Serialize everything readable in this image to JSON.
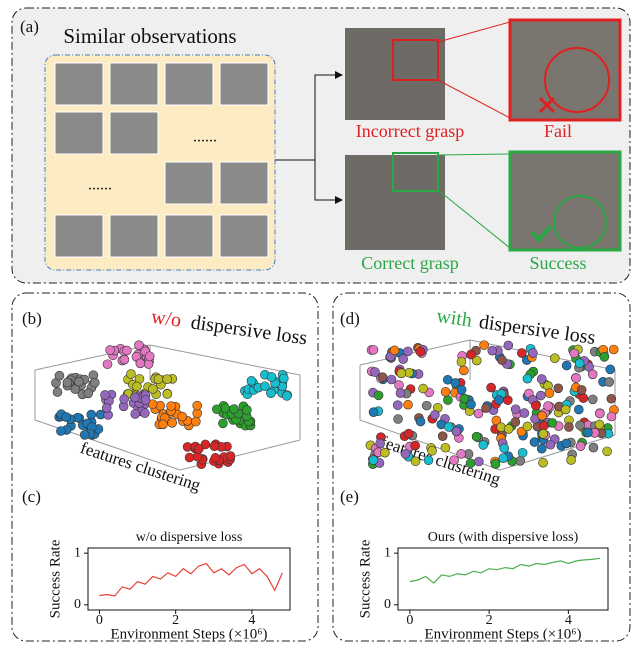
{
  "panel_a": {
    "label": "(a)",
    "title": "Similar observations",
    "dots": [
      "......",
      "......"
    ],
    "incorrect": "Incorrect grasp",
    "fail": "Fail",
    "correct": "Correct grasp",
    "success": "Success"
  },
  "panel_b": {
    "label": "(b)",
    "title_prefix": "w/o",
    "title_rest": "dispersive loss",
    "axis_label": "features clustering"
  },
  "panel_d": {
    "label": "(d)",
    "title_prefix": "with",
    "title_rest": "dispersive loss",
    "axis_label": "features clustering"
  },
  "panel_c_label": "(c)",
  "panel_e_label": "(e)",
  "chart_data": [
    {
      "type": "line",
      "title": "w/o dispersive loss",
      "x_label": "Environment Steps (×10⁶)",
      "y_label": "Success Rate",
      "color": "#e8443a",
      "x": [
        0,
        0.2,
        0.4,
        0.6,
        0.8,
        1.0,
        1.2,
        1.4,
        1.6,
        1.8,
        2.0,
        2.2,
        2.4,
        2.6,
        2.8,
        3.0,
        3.2,
        3.4,
        3.6,
        3.8,
        4.0,
        4.2,
        4.4,
        4.6,
        4.8
      ],
      "values": [
        0.18,
        0.2,
        0.17,
        0.35,
        0.3,
        0.45,
        0.4,
        0.55,
        0.5,
        0.62,
        0.55,
        0.7,
        0.6,
        0.75,
        0.8,
        0.62,
        0.7,
        0.58,
        0.72,
        0.78,
        0.6,
        0.7,
        0.55,
        0.28,
        0.62
      ],
      "xlim": [
        -0.3,
        5.0
      ],
      "ylim": [
        -0.1,
        1.1
      ],
      "xticks": [
        0,
        2,
        4
      ],
      "yticks": [
        0,
        1
      ]
    },
    {
      "type": "line",
      "title": "Ours (with dispersive loss)",
      "x_label": "Environment Steps (×10⁶)",
      "y_label": "Success Rate",
      "color": "#4caf50",
      "x": [
        0,
        0.2,
        0.4,
        0.6,
        0.8,
        1.0,
        1.2,
        1.4,
        1.6,
        1.8,
        2.0,
        2.2,
        2.4,
        2.6,
        2.8,
        3.0,
        3.2,
        3.4,
        3.6,
        3.8,
        4.0,
        4.2,
        4.4,
        4.6,
        4.8
      ],
      "values": [
        0.45,
        0.48,
        0.55,
        0.42,
        0.58,
        0.55,
        0.6,
        0.58,
        0.65,
        0.62,
        0.7,
        0.68,
        0.72,
        0.7,
        0.78,
        0.75,
        0.8,
        0.78,
        0.82,
        0.85,
        0.8,
        0.85,
        0.87,
        0.88,
        0.9
      ],
      "xlim": [
        -0.3,
        5.0
      ],
      "ylim": [
        -0.1,
        1.1
      ],
      "xticks": [
        0,
        2,
        4
      ],
      "yticks": [
        0,
        1
      ]
    }
  ]
}
